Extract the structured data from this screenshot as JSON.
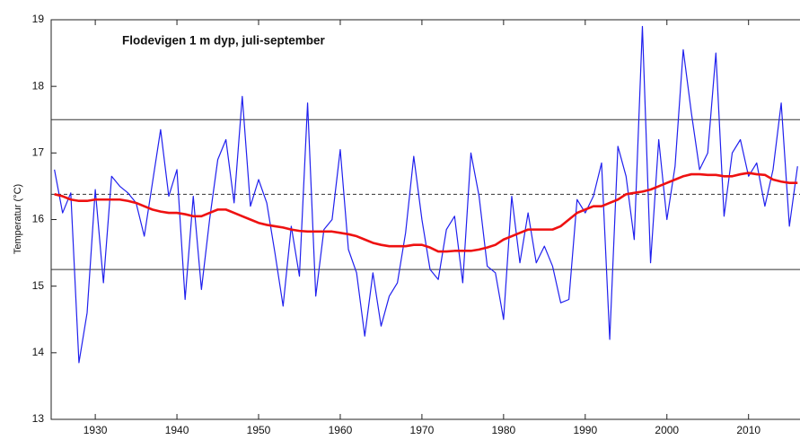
{
  "chart_data": {
    "type": "line",
    "title": "Flodevigen 1 m dyp, juli-september",
    "y_label": "Temperatur (°C)",
    "x": [
      1925,
      1926,
      1927,
      1928,
      1929,
      1930,
      1931,
      1932,
      1933,
      1934,
      1935,
      1936,
      1937,
      1938,
      1939,
      1940,
      1941,
      1942,
      1943,
      1944,
      1945,
      1946,
      1947,
      1948,
      1949,
      1950,
      1951,
      1952,
      1953,
      1954,
      1955,
      1956,
      1957,
      1958,
      1959,
      1960,
      1961,
      1962,
      1963,
      1964,
      1965,
      1966,
      1967,
      1968,
      1969,
      1970,
      1971,
      1972,
      1973,
      1974,
      1975,
      1976,
      1977,
      1978,
      1979,
      1980,
      1981,
      1982,
      1983,
      1984,
      1985,
      1986,
      1987,
      1988,
      1989,
      1990,
      1991,
      1992,
      1993,
      1994,
      1995,
      1996,
      1997,
      1998,
      1999,
      2000,
      2001,
      2002,
      2003,
      2004,
      2005,
      2006,
      2007,
      2008,
      2009,
      2010,
      2011,
      2012,
      2013,
      2014,
      2015,
      2016
    ],
    "series": [
      {
        "color": "#2020ee",
        "width": 1.2,
        "values": [
          16.75,
          16.1,
          16.4,
          13.85,
          14.6,
          16.45,
          15.05,
          16.65,
          16.5,
          16.4,
          16.25,
          15.75,
          16.55,
          17.35,
          16.35,
          16.75,
          14.8,
          16.35,
          14.95,
          16.0,
          16.9,
          17.2,
          16.25,
          17.85,
          16.2,
          16.6,
          16.25,
          15.5,
          14.7,
          15.9,
          15.15,
          17.75,
          14.85,
          15.85,
          16.0,
          17.05,
          15.55,
          15.2,
          14.25,
          15.2,
          14.4,
          14.85,
          15.05,
          15.8,
          16.95,
          16.0,
          15.25,
          15.1,
          15.85,
          16.05,
          15.05,
          17.0,
          16.35,
          15.3,
          15.2,
          14.5,
          16.35,
          15.35,
          16.1,
          15.35,
          15.6,
          15.3,
          14.75,
          14.8,
          16.3,
          16.1,
          16.35,
          16.85,
          14.2,
          17.1,
          16.65,
          15.7,
          18.9,
          15.35,
          17.2,
          16.0,
          16.8,
          18.55,
          17.6,
          16.75,
          17.0,
          18.5,
          16.05,
          17.0,
          17.2,
          16.65,
          16.85,
          16.2,
          16.75,
          17.75,
          15.9,
          16.8
        ]
      },
      {
        "color": "#ee1111",
        "width": 2.6,
        "values": [
          16.38,
          16.35,
          16.3,
          16.28,
          16.28,
          16.3,
          16.3,
          16.3,
          16.3,
          16.28,
          16.25,
          16.2,
          16.15,
          16.12,
          16.1,
          16.1,
          16.08,
          16.05,
          16.05,
          16.1,
          16.15,
          16.15,
          16.1,
          16.05,
          16.0,
          15.95,
          15.92,
          15.9,
          15.88,
          15.85,
          15.83,
          15.82,
          15.82,
          15.82,
          15.82,
          15.8,
          15.78,
          15.75,
          15.7,
          15.65,
          15.62,
          15.6,
          15.6,
          15.6,
          15.62,
          15.62,
          15.58,
          15.52,
          15.52,
          15.53,
          15.53,
          15.53,
          15.55,
          15.58,
          15.62,
          15.7,
          15.75,
          15.8,
          15.85,
          15.85,
          15.85,
          15.85,
          15.9,
          16.0,
          16.1,
          16.15,
          16.2,
          16.2,
          16.25,
          16.3,
          16.38,
          16.4,
          16.42,
          16.45,
          16.5,
          16.55,
          16.6,
          16.65,
          16.68,
          16.68,
          16.67,
          16.67,
          16.65,
          16.65,
          16.68,
          16.7,
          16.68,
          16.67,
          16.6,
          16.57,
          16.55,
          16.55
        ]
      }
    ],
    "reference_lines": [
      {
        "value": 17.5,
        "dashed": false
      },
      {
        "value": 16.38,
        "dashed": true
      },
      {
        "value": 15.25,
        "dashed": false
      }
    ],
    "xlim": [
      1924.6,
      2016.3
    ],
    "ylim": [
      13,
      19
    ],
    "xticks": [
      1930,
      1940,
      1950,
      1960,
      1970,
      1980,
      1990,
      2000,
      2010
    ],
    "yticks": [
      13,
      14,
      15,
      16,
      17,
      18,
      19
    ]
  }
}
